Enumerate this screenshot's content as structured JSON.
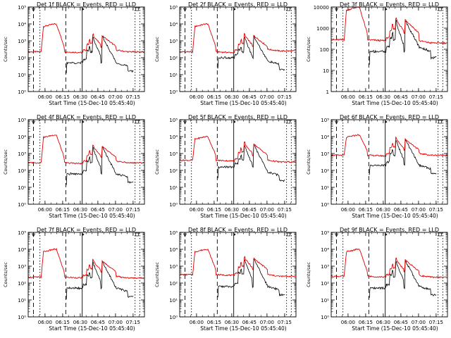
{
  "chart_data": {
    "type": "line",
    "x_title": "Start Time (15-Dec-10 05:45:40)",
    "y_title": "Counts/sec",
    "x_ticks": [
      "06:00",
      "06:15",
      "06:30",
      "06:45",
      "07:00",
      "07:15"
    ],
    "x_tick_minutes": [
      14.33,
      29.33,
      44.33,
      59.33,
      74.33,
      89.33
    ],
    "x_range_minutes": [
      0,
      99
    ],
    "markers": {
      "dashed": [
        4.5,
        32.0
      ],
      "dotted": [
        10.0,
        91.0
      ],
      "solid": [
        46.0
      ],
      "dotted_right": [
        95.0
      ]
    },
    "series_names": [
      "BLACK = Events",
      "RED = LLD"
    ],
    "colors": {
      "events": "#000000",
      "lld": "#e00000"
    },
    "panels": [
      {
        "title": "Det 1f BLACK = Events, RED = LLD",
        "y_labels": [
          "10⁰",
          "10¹",
          "10²",
          "10³",
          "10⁴",
          "10⁵"
        ],
        "y_exp": [
          0,
          5
        ],
        "red_base": 2.35,
        "red_peak": 4.0,
        "black_base": 1.7,
        "red_tail": 2.35,
        "black_tail": 1.4
      },
      {
        "title": "Det 2f BLACK = Events, RED = LLD",
        "y_labels": [
          "10⁰",
          "10¹",
          "10²",
          "10³",
          "10⁴",
          "10⁵"
        ],
        "y_exp": [
          0,
          5
        ],
        "red_base": 2.35,
        "red_peak": 4.0,
        "black_base": 2.0,
        "red_tail": 2.4,
        "black_tail": 1.5
      },
      {
        "title": "Det 3f BLACK = Events, RED = LLD",
        "y_labels": [
          "1",
          "10",
          "100",
          "1000",
          "10000"
        ],
        "y_exp": [
          0,
          4
        ],
        "red_base": 2.45,
        "red_peak": 4.0,
        "black_base": 1.9,
        "red_tail": 2.3,
        "black_tail": 1.8
      },
      {
        "title": "Det 4f BLACK = Events, RED = LLD",
        "y_labels": [
          "10⁰",
          "10¹",
          "10²",
          "10³",
          "10⁴",
          "10⁵"
        ],
        "y_exp": [
          0,
          5
        ],
        "red_base": 2.45,
        "red_peak": 4.1,
        "black_base": 1.8,
        "red_tail": 2.45,
        "black_tail": 1.5
      },
      {
        "title": "Det 5f BLACK = Events, RED = LLD",
        "y_labels": [
          "10⁰",
          "10¹",
          "10²",
          "10³",
          "10⁴",
          "10⁵"
        ],
        "y_exp": [
          0,
          5
        ],
        "red_base": 2.6,
        "red_peak": 4.0,
        "black_base": 2.2,
        "red_tail": 2.5,
        "black_tail": 1.6
      },
      {
        "title": "Det 6f BLACK = Events, RED = LLD",
        "y_labels": [
          "10⁰",
          "10¹",
          "10²",
          "10³",
          "10⁴",
          "10⁵"
        ],
        "y_exp": [
          0,
          5
        ],
        "red_base": 2.9,
        "red_peak": 4.1,
        "black_base": 2.3,
        "red_tail": 2.9,
        "black_tail": 2.0
      },
      {
        "title": "Det 7f BLACK = Events, RED = LLD",
        "y_labels": [
          "10⁰",
          "10¹",
          "10²",
          "10³",
          "10⁴",
          "10⁵"
        ],
        "y_exp": [
          0,
          5
        ],
        "red_base": 2.35,
        "red_peak": 4.0,
        "black_base": 1.7,
        "red_tail": 2.3,
        "black_tail": 1.4
      },
      {
        "title": "Det 8f BLACK = Events, RED = LLD",
        "y_labels": [
          "10⁰",
          "10¹",
          "10²",
          "10³",
          "10⁴",
          "10⁵"
        ],
        "y_exp": [
          0,
          5
        ],
        "red_base": 2.5,
        "red_peak": 4.0,
        "black_base": 1.8,
        "red_tail": 2.4,
        "black_tail": 1.5
      },
      {
        "title": "Det 9f BLACK = Events, RED = LLD",
        "y_labels": [
          "10⁰",
          "10¹",
          "10²",
          "10³",
          "10⁴",
          "10⁵"
        ],
        "y_exp": [
          0,
          5
        ],
        "red_base": 2.4,
        "red_peak": 4.0,
        "black_base": 1.7,
        "red_tail": 2.35,
        "black_tail": 1.5
      }
    ]
  }
}
